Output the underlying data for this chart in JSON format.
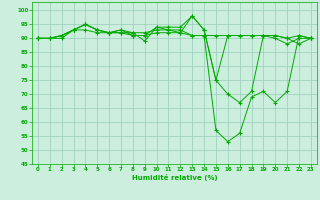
{
  "title": "",
  "xlabel": "Humidité relative (%)",
  "ylabel": "",
  "background_color": "#cceedd",
  "grid_color": "#99ccbb",
  "line_color": "#00aa00",
  "marker": "+",
  "xlim": [
    -0.5,
    23.5
  ],
  "ylim": [
    45,
    103
  ],
  "yticks": [
    45,
    50,
    55,
    60,
    65,
    70,
    75,
    80,
    85,
    90,
    95,
    100
  ],
  "xticks": [
    0,
    1,
    2,
    3,
    4,
    5,
    6,
    7,
    8,
    9,
    10,
    11,
    12,
    13,
    14,
    15,
    16,
    17,
    18,
    19,
    20,
    21,
    22,
    23
  ],
  "series": [
    [
      90,
      90,
      90,
      93,
      93,
      92,
      92,
      92,
      92,
      92,
      93,
      93,
      93,
      91,
      91,
      91,
      91,
      91,
      91,
      91,
      91,
      90,
      88,
      90
    ],
    [
      90,
      90,
      91,
      93,
      95,
      93,
      92,
      93,
      92,
      89,
      94,
      93,
      92,
      98,
      93,
      75,
      91,
      91,
      91,
      91,
      91,
      90,
      91,
      90
    ],
    [
      90,
      90,
      91,
      93,
      95,
      93,
      92,
      93,
      91,
      91,
      94,
      94,
      94,
      98,
      93,
      75,
      70,
      67,
      71,
      91,
      90,
      88,
      90,
      90
    ],
    [
      90,
      90,
      91,
      93,
      95,
      93,
      92,
      92,
      91,
      91,
      92,
      92,
      92,
      91,
      91,
      57,
      53,
      56,
      69,
      71,
      67,
      71,
      91,
      90
    ]
  ]
}
